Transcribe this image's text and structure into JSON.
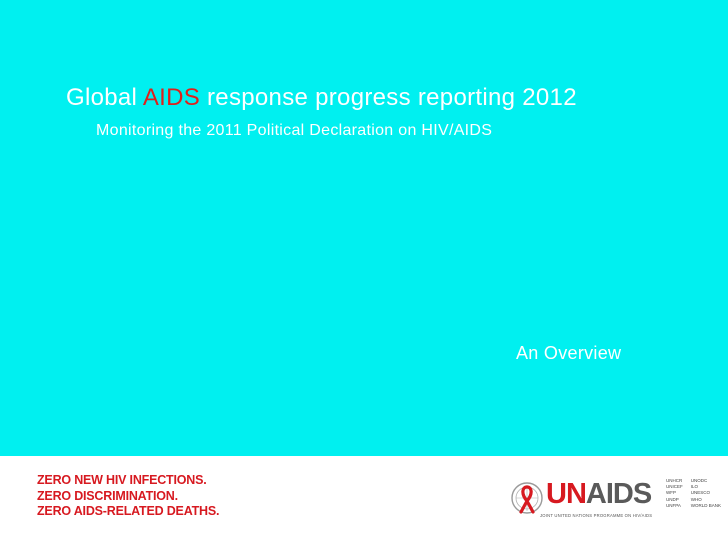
{
  "slide": {
    "title_prefix": "Global ",
    "title_accent": "AIDS",
    "title_suffix": " response progress reporting 2012",
    "subtitle": "Monitoring the 2011 Political Declaration on HIV/AIDS",
    "overview": "An Overview"
  },
  "footer": {
    "slogan": [
      "ZERO NEW HIV INFECTIONS.",
      "ZERO DISCRIMINATION.",
      "ZERO AIDS-RELATED DEATHS."
    ],
    "logo": {
      "brand_u": "UN",
      "brand_rest": "AIDS",
      "tagline": "JOINT UNITED NATIONS PROGRAMME ON HIV/AIDS"
    },
    "cosponsors_col1": [
      "UNHCR",
      "UNICEF",
      "WFP",
      "UNDP",
      "UNFPA"
    ],
    "cosponsors_col2": [
      "UNODC",
      "ILO",
      "UNESCO",
      "WHO",
      "WORLD BANK"
    ]
  },
  "colors": {
    "background": "#00f0f0",
    "accent_red": "#e0201b",
    "text": "#ffffff"
  }
}
